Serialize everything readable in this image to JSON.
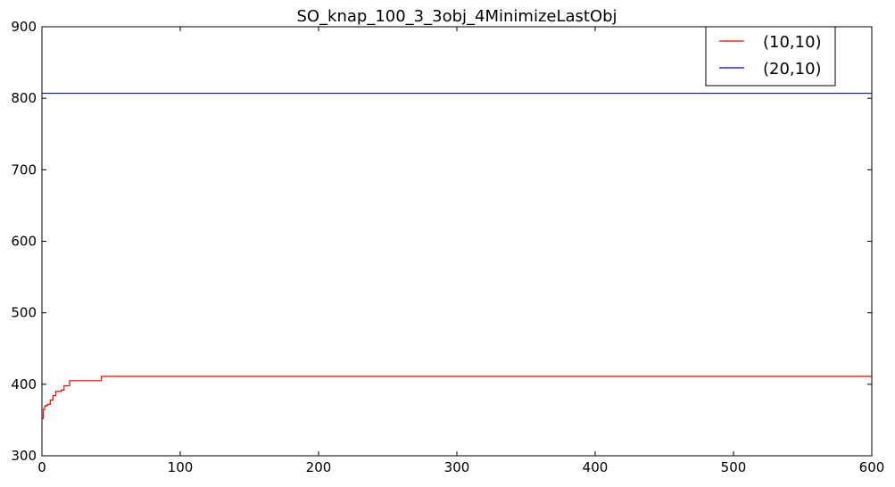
{
  "chart_data": {
    "type": "line",
    "title": "SO_knap_100_3_3obj_4MinimizeLastObj",
    "xlabel": "",
    "ylabel": "",
    "xlim": [
      0,
      600
    ],
    "ylim": [
      300,
      900
    ],
    "xticks": [
      0,
      100,
      200,
      300,
      400,
      500,
      600
    ],
    "yticks": [
      300,
      400,
      500,
      600,
      700,
      800,
      900
    ],
    "grid": false,
    "legend_position": "top-right",
    "series": [
      {
        "name": "(10,10)",
        "color": "#ff0000",
        "step": true,
        "x": [
          0,
          1,
          2,
          4,
          6,
          8,
          10,
          14,
          16,
          20,
          42,
          43,
          600
        ],
        "y": [
          352,
          365,
          370,
          372,
          378,
          384,
          390,
          392,
          398,
          405,
          405,
          411,
          411
        ]
      },
      {
        "name": "(20,10)",
        "color": "#0000ff",
        "step": false,
        "x": [
          0,
          600
        ],
        "y": [
          807,
          807
        ]
      }
    ]
  }
}
